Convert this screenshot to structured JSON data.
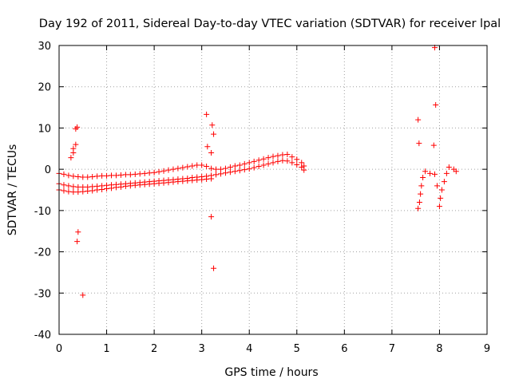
{
  "chart_data": {
    "type": "scatter",
    "title": "Day 192 of 2011, Sidereal Day-to-day VTEC variation (SDTVAR) for receiver lpal",
    "xlabel": "GPS time / hours",
    "ylabel": "SDTVAR / TECUs",
    "xlim": [
      0,
      9
    ],
    "ylim": [
      -40,
      30
    ],
    "xticks": [
      0,
      1,
      2,
      3,
      4,
      5,
      6,
      7,
      8,
      9
    ],
    "yticks": [
      -40,
      -30,
      -20,
      -10,
      0,
      10,
      20,
      30
    ],
    "grid": true,
    "marker": "+",
    "color": "#ff0000",
    "series": [
      {
        "name": "SDTVAR",
        "x": [
          0.0,
          0.1,
          0.2,
          0.3,
          0.4,
          0.5,
          0.6,
          0.7,
          0.8,
          0.9,
          1.0,
          1.1,
          1.2,
          1.3,
          1.4,
          1.5,
          1.6,
          1.7,
          1.8,
          1.9,
          2.0,
          2.1,
          2.2,
          2.3,
          2.4,
          2.5,
          2.6,
          2.7,
          2.8,
          2.9,
          3.0,
          3.1,
          3.2,
          3.3,
          3.4,
          3.5,
          3.6,
          3.7,
          3.8,
          3.9,
          4.0,
          4.1,
          4.2,
          4.3,
          4.4,
          4.5,
          4.6,
          4.7,
          4.8,
          4.9,
          5.0,
          5.1,
          5.15,
          0.0,
          0.1,
          0.2,
          0.3,
          0.4,
          0.5,
          0.6,
          0.7,
          0.8,
          0.9,
          1.0,
          1.1,
          1.2,
          1.3,
          1.4,
          1.5,
          1.6,
          1.7,
          1.8,
          1.9,
          2.0,
          2.1,
          2.2,
          2.3,
          2.4,
          2.5,
          2.6,
          2.7,
          2.8,
          2.9,
          3.0,
          3.1,
          3.2,
          3.3,
          3.4,
          3.5,
          3.6,
          3.7,
          3.8,
          3.9,
          4.0,
          4.1,
          4.2,
          4.3,
          4.4,
          4.5,
          4.6,
          4.7,
          4.8,
          4.9,
          5.0,
          5.1,
          5.15,
          0.0,
          0.1,
          0.2,
          0.3,
          0.4,
          0.5,
          0.6,
          0.7,
          0.8,
          0.9,
          1.0,
          1.1,
          1.2,
          1.3,
          1.4,
          1.5,
          1.6,
          1.7,
          1.8,
          1.9,
          2.0,
          2.1,
          2.2,
          2.3,
          2.4,
          2.5,
          2.6,
          2.7,
          2.8,
          2.9,
          3.0,
          3.1,
          3.2,
          0.3,
          0.35,
          0.38,
          0.25,
          0.3,
          0.35,
          0.4,
          0.38,
          0.5,
          3.1,
          3.12,
          3.2,
          3.22,
          3.25,
          3.2,
          3.25,
          7.55,
          7.58,
          7.6,
          7.62,
          7.65,
          7.7,
          7.8,
          7.9,
          7.95,
          8.0,
          8.02,
          8.05,
          8.1,
          8.15,
          8.2,
          8.3,
          8.35,
          7.55,
          7.57,
          7.9,
          7.92,
          7.88
        ],
        "y": [
          -1.0,
          -1.2,
          -1.5,
          -1.7,
          -1.8,
          -1.9,
          -1.9,
          -1.8,
          -1.7,
          -1.6,
          -1.6,
          -1.5,
          -1.5,
          -1.4,
          -1.3,
          -1.3,
          -1.2,
          -1.1,
          -1.0,
          -0.9,
          -0.8,
          -0.6,
          -0.4,
          -0.2,
          0.0,
          0.2,
          0.4,
          0.6,
          0.8,
          1.0,
          1.0,
          0.7,
          0.2,
          0.0,
          0.0,
          0.2,
          0.5,
          0.8,
          1.0,
          1.3,
          1.6,
          1.9,
          2.2,
          2.5,
          2.8,
          3.1,
          3.3,
          3.5,
          3.6,
          3.0,
          2.4,
          1.6,
          0.8,
          -3.5,
          -3.8,
          -4.0,
          -4.2,
          -4.3,
          -4.3,
          -4.3,
          -4.2,
          -4.1,
          -4.0,
          -3.9,
          -3.8,
          -3.7,
          -3.6,
          -3.5,
          -3.4,
          -3.3,
          -3.2,
          -3.1,
          -3.0,
          -2.9,
          -2.8,
          -2.7,
          -2.6,
          -2.5,
          -2.4,
          -2.3,
          -2.2,
          -2.0,
          -1.9,
          -1.8,
          -1.7,
          -1.5,
          -1.3,
          -1.1,
          -0.9,
          -0.7,
          -0.5,
          -0.3,
          -0.1,
          0.1,
          0.4,
          0.7,
          1.0,
          1.3,
          1.6,
          1.9,
          2.1,
          2.0,
          1.6,
          1.1,
          0.5,
          -0.2,
          -5.0,
          -5.2,
          -5.4,
          -5.5,
          -5.5,
          -5.4,
          -5.3,
          -5.2,
          -5.0,
          -4.9,
          -4.7,
          -4.6,
          -4.4,
          -4.3,
          -4.1,
          -4.0,
          -3.9,
          -3.8,
          -3.7,
          -3.6,
          -3.5,
          -3.4,
          -3.3,
          -3.2,
          -3.1,
          -3.0,
          -2.9,
          -2.8,
          -2.7,
          -2.6,
          -2.5,
          -2.4,
          -2.3,
          5.0,
          9.8,
          10.2,
          2.8,
          4.0,
          6.0,
          -15.2,
          -17.5,
          -30.5,
          13.3,
          5.5,
          4.0,
          10.7,
          8.5,
          -11.5,
          -24.0,
          -9.5,
          -8.0,
          -6.0,
          -4.0,
          -2.0,
          -0.5,
          -1.0,
          -1.2,
          -4.0,
          -9.0,
          -7.0,
          -5.0,
          -3.0,
          -1.0,
          0.5,
          0.0,
          -0.5,
          12.0,
          6.3,
          29.5,
          15.6,
          5.8
        ]
      }
    ]
  }
}
